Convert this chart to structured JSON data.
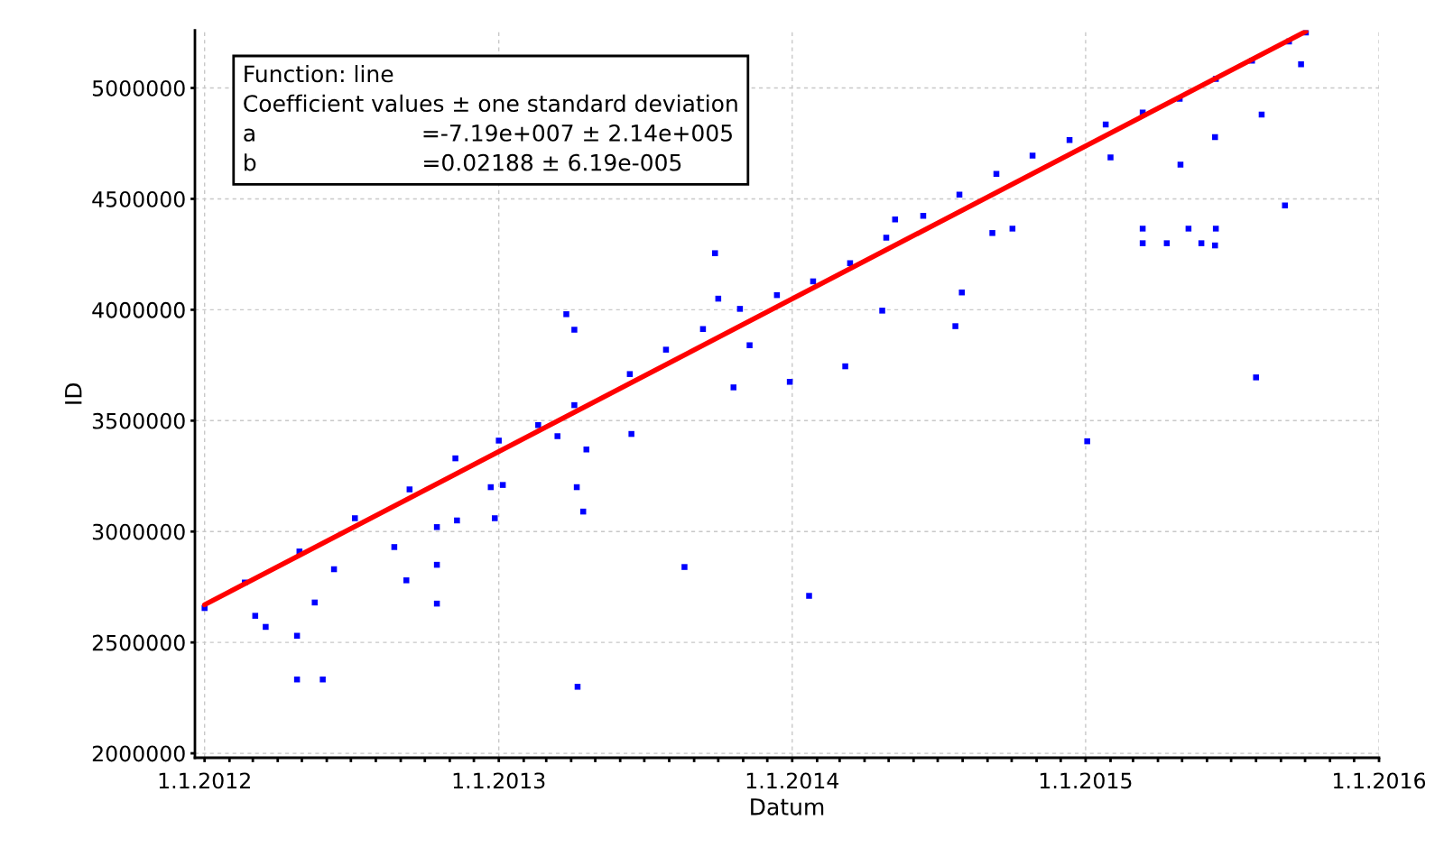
{
  "chart_data": {
    "type": "scatter",
    "xlabel": "Datum",
    "ylabel": "ID",
    "xlim": [
      "2011-12-20",
      "2016-01-01"
    ],
    "ylim": [
      1980000,
      5260000
    ],
    "xticks": [
      {
        "value": "2012-01-01",
        "label": "1.1.2012"
      },
      {
        "value": "2012-02-01",
        "label": null
      },
      {
        "value": "2012-03-01",
        "label": null
      },
      {
        "value": "2012-04-01",
        "label": null
      },
      {
        "value": "2012-05-01",
        "label": null
      },
      {
        "value": "2012-06-01",
        "label": null
      },
      {
        "value": "2012-07-01",
        "label": null
      },
      {
        "value": "2012-08-01",
        "label": null
      },
      {
        "value": "2012-09-01",
        "label": null
      },
      {
        "value": "2012-10-01",
        "label": null
      },
      {
        "value": "2012-11-01",
        "label": null
      },
      {
        "value": "2012-12-01",
        "label": null
      },
      {
        "value": "2013-01-01",
        "label": "1.1.2013"
      },
      {
        "value": "2013-02-01",
        "label": null
      },
      {
        "value": "2013-03-01",
        "label": null
      },
      {
        "value": "2013-04-01",
        "label": null
      },
      {
        "value": "2013-05-01",
        "label": null
      },
      {
        "value": "2013-06-01",
        "label": null
      },
      {
        "value": "2013-07-01",
        "label": null
      },
      {
        "value": "2013-08-01",
        "label": null
      },
      {
        "value": "2013-09-01",
        "label": null
      },
      {
        "value": "2013-10-01",
        "label": null
      },
      {
        "value": "2013-11-01",
        "label": null
      },
      {
        "value": "2013-12-01",
        "label": null
      },
      {
        "value": "2014-01-01",
        "label": "1.1.2014"
      },
      {
        "value": "2014-02-01",
        "label": null
      },
      {
        "value": "2014-03-01",
        "label": null
      },
      {
        "value": "2014-04-01",
        "label": null
      },
      {
        "value": "2014-05-01",
        "label": null
      },
      {
        "value": "2014-06-01",
        "label": null
      },
      {
        "value": "2014-07-01",
        "label": null
      },
      {
        "value": "2014-08-01",
        "label": null
      },
      {
        "value": "2014-09-01",
        "label": null
      },
      {
        "value": "2014-10-01",
        "label": null
      },
      {
        "value": "2014-11-01",
        "label": null
      },
      {
        "value": "2014-12-01",
        "label": null
      },
      {
        "value": "2015-01-01",
        "label": "1.1.2015"
      },
      {
        "value": "2015-02-01",
        "label": null
      },
      {
        "value": "2015-03-01",
        "label": null
      },
      {
        "value": "2015-04-01",
        "label": null
      },
      {
        "value": "2015-05-01",
        "label": null
      },
      {
        "value": "2015-06-01",
        "label": null
      },
      {
        "value": "2015-07-01",
        "label": null
      },
      {
        "value": "2015-08-01",
        "label": null
      },
      {
        "value": "2015-09-01",
        "label": null
      },
      {
        "value": "2015-10-01",
        "label": null
      },
      {
        "value": "2015-11-01",
        "label": null
      },
      {
        "value": "2015-12-01",
        "label": null
      },
      {
        "value": "2016-01-01",
        "label": "1.1.2016"
      }
    ],
    "yticks": [
      2000000,
      2500000,
      3000000,
      3500000,
      4000000,
      4500000,
      5000000
    ],
    "grid": true,
    "marker": "square",
    "annotations": [
      "Function: line",
      "Coefficient values ± one standard deviation",
      "a\t=-7.19e+007 ± 2.14e+005",
      "b\t=0.02188 ± 6.19e-005"
    ],
    "series": [
      {
        "color": "#0000ff",
        "x": [
          "2012-01-01",
          "2012-02-20",
          "2012-04-28",
          "2012-07-06",
          "2012-09-12",
          "2012-11-08",
          "2013-01-01",
          "2013-02-19",
          "2013-04-05",
          "2013-06-13",
          "2013-07-28",
          "2013-09-12",
          "2013-10-28",
          "2013-12-13",
          "2014-01-27",
          "2014-03-14",
          "2014-04-28",
          "2014-06-13",
          "2014-07-28",
          "2014-09-12",
          "2014-10-27",
          "2014-12-12",
          "2015-01-26",
          "2015-03-13",
          "2015-04-28",
          "2015-06-12",
          "2015-07-27",
          "2015-09-11",
          "2015-10-02",
          "2012-04-25",
          "2012-05-27",
          "2012-04-25",
          "2012-03-17",
          "2012-03-04",
          "2012-05-17",
          "2012-06-10",
          "2012-08-24",
          "2012-09-08",
          "2012-10-16",
          "2012-10-16",
          "2012-10-16",
          "2012-11-10",
          "2012-12-27",
          "2012-12-22",
          "2013-01-06",
          "2013-03-26",
          "2013-04-05",
          "2013-04-09",
          "2013-04-08",
          "2013-04-16",
          "2013-04-20",
          "2013-03-15",
          "2013-06-15",
          "2013-08-20",
          "2013-09-27",
          "2013-10-01",
          "2013-10-20",
          "2013-11-09",
          "2013-12-29",
          "2014-01-22",
          "2014-03-08",
          "2014-04-23",
          "2014-05-09",
          "2014-07-23",
          "2014-07-31",
          "2014-09-07",
          "2014-10-02",
          "2015-01-03",
          "2015-02-01",
          "2015-03-13",
          "2015-03-13",
          "2015-04-12",
          "2015-04-29",
          "2015-05-09",
          "2015-05-25",
          "2015-06-12",
          "2015-06-11",
          "2015-06-11",
          "2015-08-01",
          "2015-08-08",
          "2015-09-06",
          "2015-09-26"
        ],
        "values": [
          2655000,
          2770000,
          2910000,
          3060000,
          3190000,
          3330000,
          3410000,
          3480000,
          3570000,
          3710000,
          3820000,
          3913000,
          4004000,
          4066000,
          4128000,
          4210000,
          4325000,
          4424000,
          4519000,
          4613000,
          4695000,
          4765000,
          4835000,
          4889000,
          4951000,
          5041000,
          5123000,
          5210000,
          5250000,
          2333000,
          2333000,
          2530000,
          2570000,
          2620000,
          2680000,
          2830000,
          2930000,
          2780000,
          2675000,
          3020000,
          2850000,
          3050000,
          3060000,
          3200000,
          3210000,
          3980000,
          3910000,
          2300000,
          3200000,
          3090000,
          3370000,
          3430000,
          3440000,
          2840000,
          4255000,
          4050000,
          3650000,
          3840000,
          3675000,
          2710000,
          3745000,
          3996000,
          4407000,
          3926000,
          4078000,
          4346000,
          4366000,
          3407000,
          4687000,
          4366000,
          4300000,
          4300000,
          4654000,
          4366000,
          4300000,
          4366000,
          4290000,
          4778000,
          3695000,
          4880000,
          4470000,
          5107000
        ]
      },
      {
        "type": "line",
        "color": "#ff0000",
        "marker": "none",
        "x": [
          "2012-01-01",
          "2015-10-02"
        ],
        "values": [
          2670000,
          5255000
        ]
      }
    ]
  }
}
